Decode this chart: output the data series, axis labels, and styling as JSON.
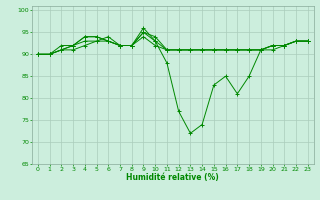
{
  "background_color": "#cceedd",
  "grid_color": "#aaccbb",
  "line_color": "#008800",
  "marker_color": "#008800",
  "xlabel": "Humidité relative (%)",
  "xlabel_color": "#008800",
  "ylabel_color": "#008800",
  "tick_color": "#008800",
  "xlim": [
    -0.5,
    23.5
  ],
  "ylim": [
    65,
    101
  ],
  "yticks": [
    65,
    70,
    75,
    80,
    85,
    90,
    95,
    100
  ],
  "xticks": [
    0,
    1,
    2,
    3,
    4,
    5,
    6,
    7,
    8,
    9,
    10,
    11,
    12,
    13,
    14,
    15,
    16,
    17,
    18,
    19,
    20,
    21,
    22,
    23
  ],
  "series": [
    [
      90,
      90,
      91,
      91,
      92,
      93,
      94,
      92,
      92,
      95,
      94,
      91,
      91,
      91,
      91,
      91,
      91,
      91,
      91,
      91,
      92,
      92,
      93,
      93
    ],
    [
      90,
      90,
      91,
      92,
      94,
      94,
      93,
      92,
      92,
      96,
      93,
      91,
      91,
      91,
      91,
      91,
      91,
      91,
      91,
      91,
      92,
      92,
      93,
      93
    ],
    [
      90,
      90,
      92,
      92,
      94,
      94,
      93,
      92,
      92,
      95,
      93,
      88,
      77,
      72,
      74,
      83,
      85,
      81,
      85,
      91,
      91,
      92,
      93,
      93
    ],
    [
      90,
      90,
      91,
      92,
      93,
      93,
      93,
      92,
      92,
      94,
      92,
      91,
      91,
      91,
      91,
      91,
      91,
      91,
      91,
      91,
      92,
      92,
      93,
      93
    ]
  ]
}
